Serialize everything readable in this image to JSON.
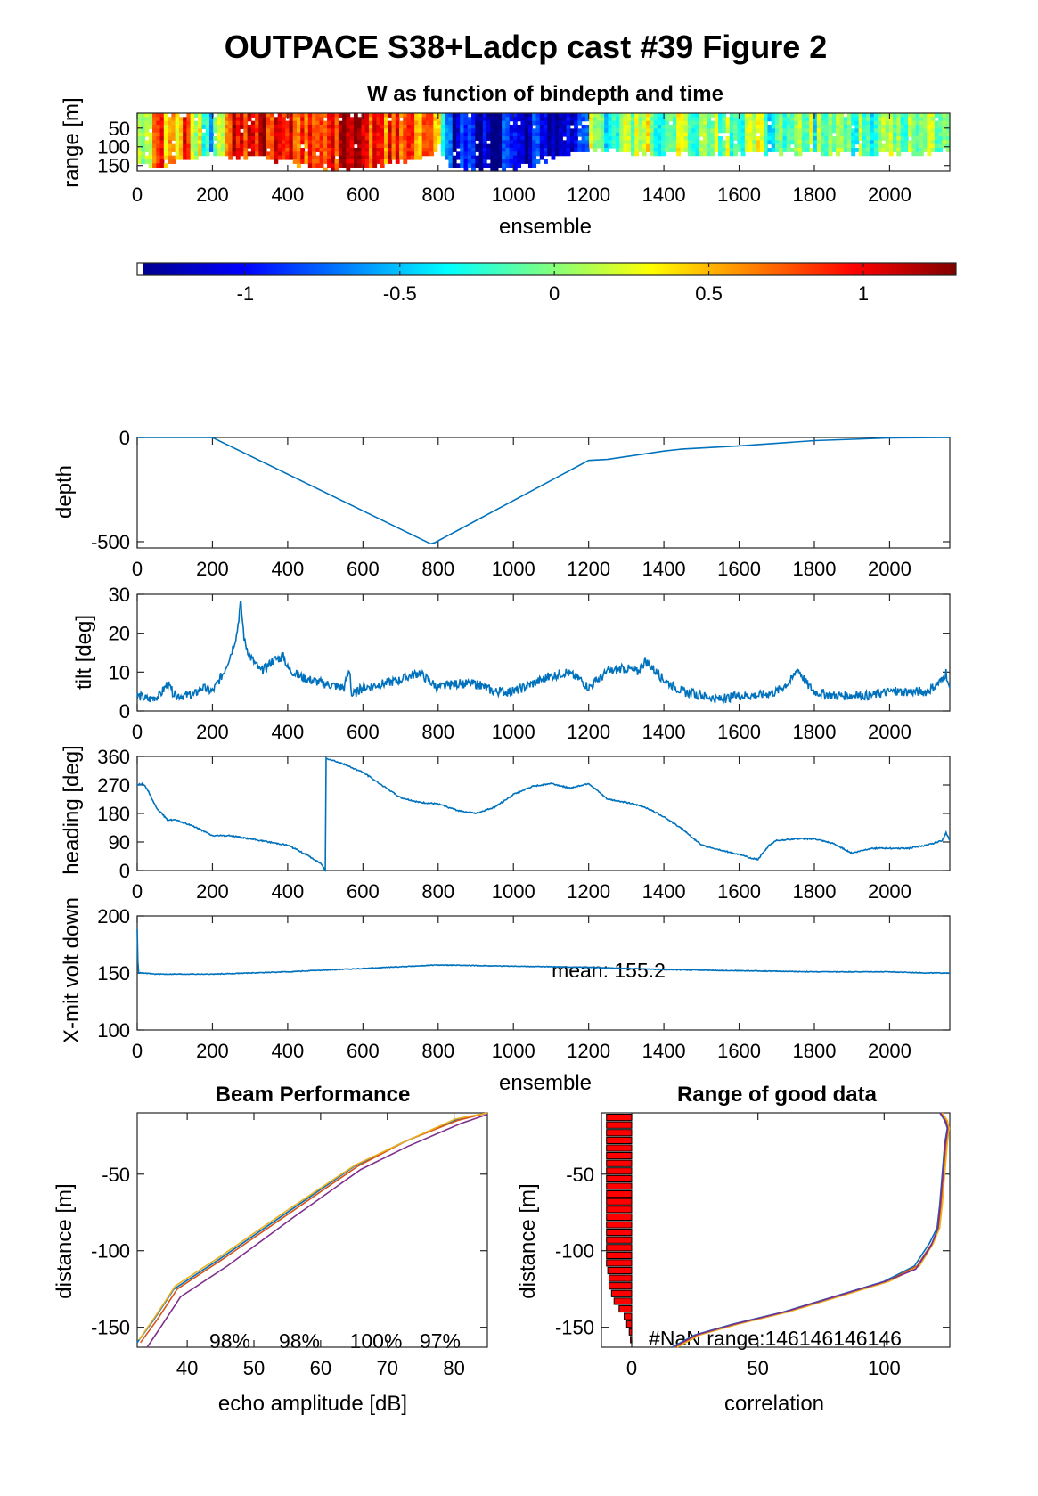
{
  "figure_title": "OUTPACE S38+Ladcp cast #39 Figure 2",
  "colors": {
    "series": "#0072bd",
    "beams": [
      "#0072bd",
      "#d95319",
      "#edb120",
      "#7e2f8e"
    ],
    "nan_bars": "#ff0000"
  },
  "chart_data": [
    {
      "id": "w-image",
      "type": "heatmap",
      "title": "W as function of bindepth and time",
      "xlabel": "ensemble",
      "ylabel": "range [m]",
      "xlim": [
        0,
        2160
      ],
      "ylim": [
        10,
        165
      ],
      "xticks": [
        0,
        200,
        400,
        600,
        800,
        1000,
        1200,
        1400,
        1600,
        1800,
        2000
      ],
      "yticks": [
        50,
        100,
        150
      ],
      "colorscale": "jet",
      "clim": [
        -1.35,
        1.3
      ],
      "w_profile": {
        "x": [
          0,
          20,
          40,
          60,
          80,
          100,
          130,
          160,
          200,
          230,
          260,
          300,
          350,
          400,
          450,
          500,
          550,
          600,
          650,
          700,
          750,
          780,
          800,
          830,
          870,
          920,
          970,
          1020,
          1060,
          1100,
          1150,
          1190,
          1200,
          1250,
          1300,
          1350,
          1400,
          1450,
          1500,
          1550,
          1600,
          1650,
          1700,
          1750,
          1800,
          1850,
          1900,
          1950,
          2000,
          2050,
          2100,
          2150
        ],
        "w": [
          0.1,
          0.3,
          0.5,
          0.7,
          0.6,
          0.4,
          0.8,
          0.2,
          -0.5,
          0.5,
          0.95,
          0.9,
          1.0,
          0.9,
          0.95,
          0.85,
          1.05,
          1.0,
          0.8,
          0.85,
          0.7,
          0.5,
          0.3,
          -1.0,
          -1.1,
          -1.15,
          -1.1,
          -1.2,
          -1.05,
          -1.1,
          -1.0,
          -1.05,
          0.0,
          -0.3,
          -0.1,
          0.1,
          -0.2,
          0.15,
          -0.1,
          0.05,
          -0.15,
          0.0,
          -0.2,
          0.1,
          -0.1,
          0.0,
          -0.05,
          -0.2,
          0.05,
          -0.1,
          0.0,
          0.05
        ],
        "max_range_m": [
          140,
          145,
          150,
          155,
          150,
          140,
          135,
          130,
          120,
          125,
          128,
          125,
          135,
          140,
          150,
          158,
          160,
          155,
          150,
          140,
          130,
          120,
          110,
          150,
          155,
          160,
          158,
          155,
          145,
          130,
          120,
          110,
          110,
          112,
          115,
          118,
          120,
          122,
          125,
          120,
          118,
          115,
          120,
          118,
          115,
          120,
          118,
          122,
          120,
          118,
          115,
          112
        ]
      }
    },
    {
      "id": "colorbar",
      "type": "colorbar",
      "range": [
        -1.35,
        1.3
      ],
      "ticks": [
        -1,
        -0.5,
        0,
        0.5,
        1
      ],
      "tick_labels": [
        "-1",
        "-0.5",
        "0",
        "0.5",
        "1"
      ]
    },
    {
      "id": "depth",
      "type": "line",
      "ylabel": "depth",
      "xlim": [
        0,
        2160
      ],
      "ylim": [
        -530,
        0
      ],
      "xticks": [
        0,
        200,
        400,
        600,
        800,
        1000,
        1200,
        1400,
        1600,
        1800,
        2000
      ],
      "yticks": [
        0,
        -500
      ],
      "x": [
        0,
        200,
        780,
        790,
        1200,
        1250,
        1400,
        1450,
        1600,
        1800,
        2000,
        2160
      ],
      "y": [
        0,
        0,
        -510,
        -505,
        -110,
        -105,
        -65,
        -55,
        -40,
        -15,
        -2,
        0
      ]
    },
    {
      "id": "tilt",
      "type": "line",
      "ylabel": "tilt [deg]",
      "xlim": [
        0,
        2160
      ],
      "ylim": [
        0,
        30
      ],
      "xticks": [
        0,
        200,
        400,
        600,
        800,
        1000,
        1200,
        1400,
        1600,
        1800,
        2000
      ],
      "yticks": [
        0,
        10,
        20,
        30
      ],
      "x": [
        0,
        30,
        60,
        80,
        100,
        150,
        170,
        200,
        230,
        250,
        265,
        275,
        285,
        300,
        330,
        360,
        390,
        400,
        430,
        460,
        500,
        550,
        565,
        570,
        600,
        650,
        700,
        750,
        760,
        800,
        850,
        900,
        950,
        1000,
        1050,
        1100,
        1140,
        1180,
        1200,
        1250,
        1300,
        1330,
        1350,
        1400,
        1450,
        1500,
        1550,
        1600,
        1650,
        1700,
        1740,
        1755,
        1780,
        1800,
        1850,
        1900,
        1950,
        2000,
        2050,
        2100,
        2140,
        2150,
        2160
      ],
      "y": [
        4,
        3,
        4,
        7,
        4,
        4,
        6,
        5,
        10,
        15,
        20,
        28,
        18,
        14,
        10,
        13,
        14,
        11,
        9,
        8,
        7,
        6,
        11,
        4,
        6,
        7,
        8,
        10,
        9,
        6,
        7,
        7,
        5,
        5,
        7,
        9,
        10,
        8,
        6,
        10,
        11,
        10,
        13,
        8,
        5,
        4,
        3,
        4,
        4,
        5,
        8,
        11,
        7,
        5,
        4,
        4,
        4,
        5,
        5,
        5,
        8,
        10,
        5
      ]
    },
    {
      "id": "heading",
      "type": "line",
      "ylabel": "heading [deg]",
      "xlim": [
        0,
        2160
      ],
      "ylim": [
        0,
        360
      ],
      "xticks": [
        0,
        200,
        400,
        600,
        800,
        1000,
        1200,
        1400,
        1600,
        1800,
        2000
      ],
      "yticks": [
        0,
        90,
        180,
        270,
        360
      ],
      "x": [
        0,
        15,
        30,
        50,
        80,
        100,
        150,
        200,
        250,
        300,
        350,
        400,
        450,
        490,
        500,
        502,
        540,
        600,
        650,
        700,
        750,
        800,
        850,
        900,
        950,
        1000,
        1050,
        1100,
        1150,
        1200,
        1250,
        1300,
        1350,
        1400,
        1450,
        1480,
        1500,
        1550,
        1600,
        1630,
        1650,
        1680,
        1700,
        1750,
        1800,
        1850,
        1900,
        1950,
        2000,
        2050,
        2100,
        2140,
        2150,
        2160
      ],
      "y": [
        270,
        275,
        250,
        200,
        160,
        160,
        140,
        110,
        110,
        100,
        90,
        80,
        50,
        20,
        0,
        355,
        340,
        310,
        270,
        230,
        215,
        210,
        190,
        180,
        200,
        240,
        265,
        275,
        260,
        275,
        225,
        215,
        200,
        170,
        130,
        100,
        80,
        65,
        50,
        40,
        35,
        80,
        95,
        100,
        100,
        85,
        55,
        70,
        70,
        70,
        80,
        95,
        120,
        95
      ]
    },
    {
      "id": "xmit-volt",
      "type": "line",
      "ylabel": "X-mit volt down",
      "xlabel": "ensemble",
      "xlim": [
        0,
        2160
      ],
      "ylim": [
        100,
        200
      ],
      "xticks": [
        0,
        200,
        400,
        600,
        800,
        1000,
        1200,
        1400,
        1600,
        1800,
        2000
      ],
      "yticks": [
        100,
        150,
        200
      ],
      "annotation": "mean: 155.2",
      "x": [
        0,
        2,
        4,
        6,
        10,
        50,
        200,
        400,
        600,
        800,
        1000,
        1200,
        1400,
        1600,
        1800,
        2000,
        2100,
        2160
      ],
      "y": [
        188,
        160,
        150,
        150,
        150,
        149,
        149,
        151,
        154,
        157,
        156,
        155,
        153,
        152,
        151,
        151,
        150,
        150
      ]
    },
    {
      "id": "beam-performance",
      "type": "line",
      "title": "Beam Performance",
      "xlabel": "echo amplitude [dB]",
      "ylabel": "distance [m]",
      "xlim": [
        32.5,
        85
      ],
      "ylim": [
        -163,
        -10
      ],
      "xticks": [
        40,
        50,
        60,
        70,
        80
      ],
      "yticks": [
        -50,
        -100,
        -150
      ],
      "beam_percent_labels": [
        "98%",
        "98%",
        "100%",
        "97%"
      ],
      "series": [
        {
          "x": [
            32.5,
            35,
            38,
            45,
            55,
            65,
            72,
            80,
            85
          ],
          "y": [
            -160,
            -145,
            -125,
            -105,
            -75,
            -45,
            -30,
            -15,
            -10
          ]
        },
        {
          "x": [
            33,
            35.5,
            38.5,
            45.5,
            55.5,
            65.5,
            73,
            80.5,
            85
          ],
          "y": [
            -160,
            -145,
            -125,
            -105,
            -75,
            -45,
            -28,
            -15,
            -10
          ]
        },
        {
          "x": [
            32.8,
            35.2,
            38.2,
            45.2,
            55.2,
            65.2,
            72.5,
            80.2,
            85
          ],
          "y": [
            -158,
            -143,
            -123,
            -103,
            -73,
            -44,
            -29,
            -14,
            -10
          ]
        },
        {
          "x": [
            34,
            36,
            39,
            46,
            56,
            66,
            73,
            81,
            85
          ],
          "y": [
            -163,
            -150,
            -130,
            -110,
            -78,
            -47,
            -32,
            -17,
            -11
          ]
        }
      ]
    },
    {
      "id": "range-good-data",
      "type": "line",
      "title": "Range of good data",
      "xlabel": "correlation",
      "ylabel": "distance [m]",
      "xlim": [
        -12,
        126
      ],
      "ylim": [
        -163,
        -10
      ],
      "xticks": [
        0,
        50,
        100
      ],
      "yticks": [
        -50,
        -100,
        -150
      ],
      "annotation": "#NaN range:146146146146",
      "nan_bars": {
        "y": [
          -13,
          -18,
          -23,
          -28,
          -33,
          -38,
          -43,
          -48,
          -53,
          -58,
          -63,
          -68,
          -73,
          -78,
          -83,
          -88,
          -93,
          -98,
          -103,
          -108,
          -113,
          -118,
          -123,
          -128,
          -133,
          -138,
          -143,
          -148,
          -153,
          -158
        ],
        "width": [
          10,
          10,
          10,
          10,
          10,
          10,
          10,
          10,
          10,
          10,
          10,
          10,
          10,
          10,
          10,
          10,
          10,
          10,
          10,
          10,
          9.5,
          9,
          9,
          8,
          7,
          5,
          3,
          2,
          1,
          0.5
        ]
      },
      "series": [
        {
          "x": [
            16,
            25,
            40,
            60,
            80,
            100,
            112,
            118,
            121,
            122,
            123,
            124,
            125,
            124,
            122
          ],
          "y": [
            -163,
            -155,
            -148,
            -140,
            -130,
            -120,
            -110,
            -95,
            -85,
            -70,
            -50,
            -30,
            -20,
            -15,
            -10
          ]
        },
        {
          "x": [
            17,
            26,
            41,
            61,
            81,
            101,
            113,
            119,
            121.5,
            122.5,
            123.5,
            124.5,
            125.5,
            124.5,
            122.5
          ],
          "y": [
            -163,
            -155,
            -148,
            -140,
            -130,
            -120,
            -110,
            -95,
            -85,
            -70,
            -50,
            -30,
            -20,
            -15,
            -10
          ]
        },
        {
          "x": [
            18,
            27,
            42,
            62,
            82,
            102,
            114,
            119.5,
            122,
            123,
            124,
            125,
            125.8,
            125,
            123
          ],
          "y": [
            -163,
            -155,
            -148,
            -140,
            -130,
            -120,
            -110,
            -95,
            -85,
            -70,
            -50,
            -30,
            -20,
            -15,
            -10
          ]
        },
        {
          "x": [
            16.5,
            25.5,
            40.5,
            60.5,
            80.5,
            100.5,
            112.5,
            118.5,
            121.2,
            122.2,
            123.2,
            124.2,
            125.2,
            124.2,
            122.2
          ],
          "y": [
            -163,
            -155,
            -148,
            -140,
            -130,
            -120,
            -112,
            -97,
            -86,
            -70,
            -50,
            -30,
            -20,
            -15,
            -10
          ]
        }
      ]
    }
  ]
}
